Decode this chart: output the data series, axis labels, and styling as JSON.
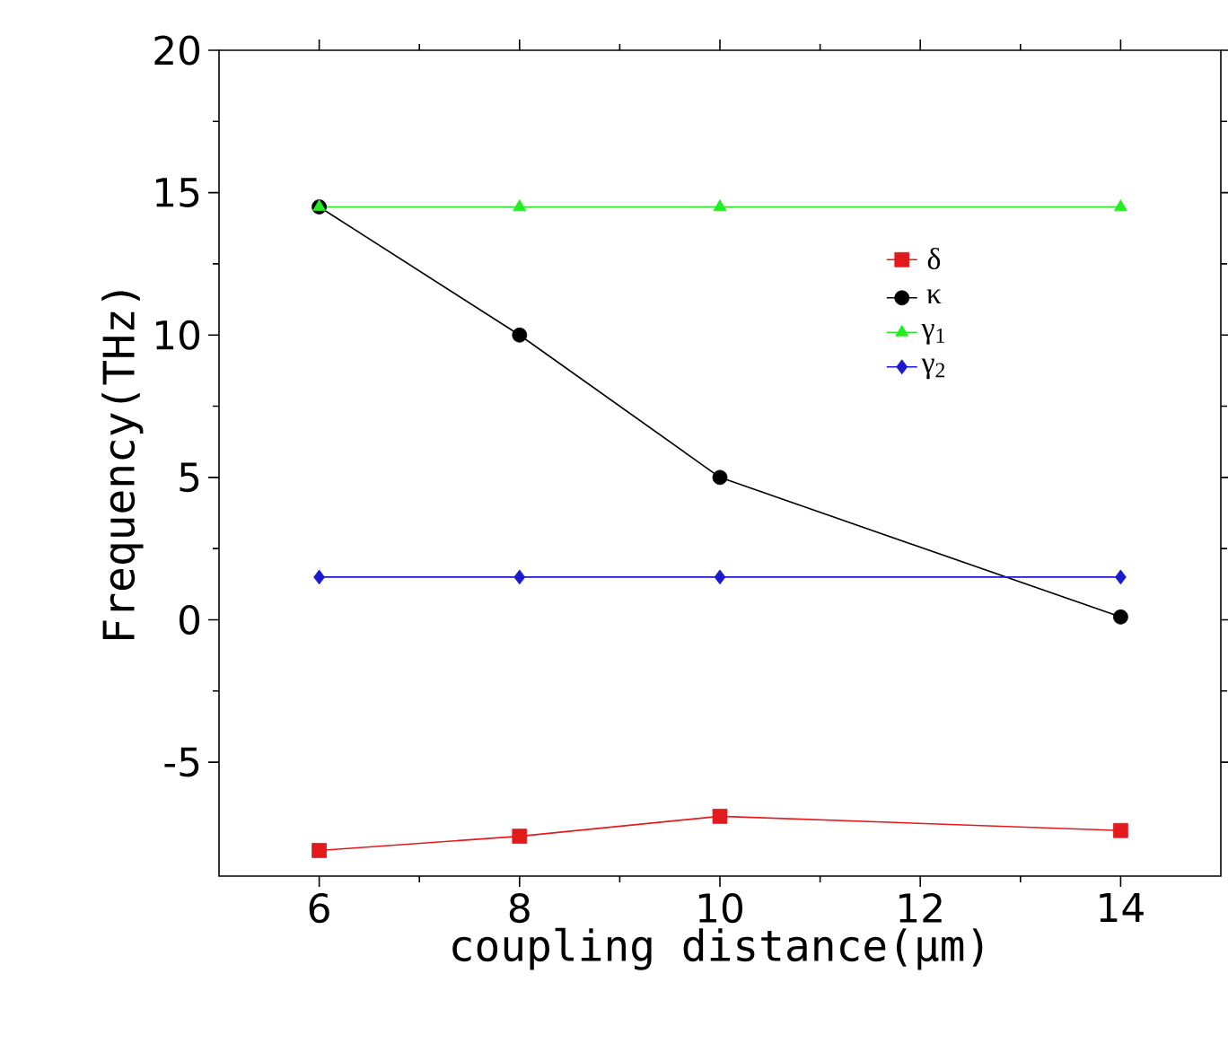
{
  "chart_data": {
    "type": "line",
    "xlabel": "coupling distance(μm)",
    "ylabel": "Frequency(THz)",
    "x": [
      6,
      8,
      10,
      14
    ],
    "series": [
      {
        "name": "δ",
        "color": "#e31a1c",
        "marker": "square",
        "values": [
          -8.1,
          -7.6,
          -6.9,
          -7.4
        ]
      },
      {
        "name": "κ",
        "color": "#000000",
        "marker": "circle",
        "values": [
          14.5,
          10,
          5,
          0.1
        ]
      },
      {
        "name": "γ$_{1}$",
        "color": "#22ee22",
        "marker": "triangle",
        "values": [
          14.5,
          14.5,
          14.5,
          14.5
        ]
      },
      {
        "name": "γ$_{2}$",
        "color": "#1a1acc",
        "marker": "diamond",
        "values": [
          1.5,
          1.5,
          1.5,
          1.5
        ]
      }
    ],
    "xlim": [
      5,
      15
    ],
    "xticks": [
      6,
      8,
      10,
      12,
      14
    ],
    "ylim": [
      -9,
      20
    ],
    "yticks": [
      -5,
      0,
      5,
      10,
      15,
      20
    ],
    "legend": "right",
    "grid": false,
    "line_style": "solid"
  }
}
